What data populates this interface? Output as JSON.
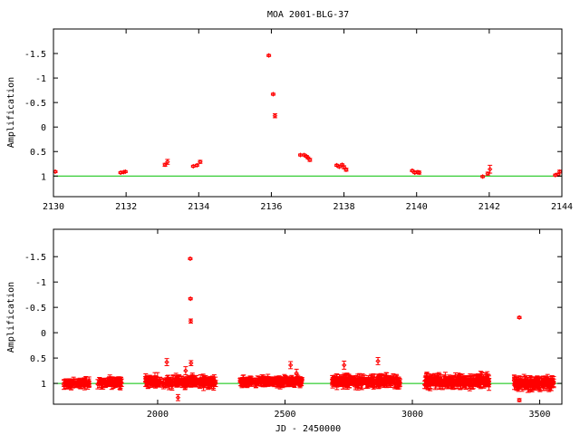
{
  "title": "MOA 2001-BLG-37",
  "colors": {
    "data": "#ff0000",
    "baseline": "#00c000",
    "frame": "#000000"
  },
  "chart_data": [
    {
      "type": "scatter",
      "title": "MOA 2001-BLG-37",
      "xlabel": "",
      "ylabel": "Amplification",
      "xlim": [
        2130,
        2144
      ],
      "ylim": [
        -2.0,
        1.42
      ],
      "y_reversed": true,
      "xticks": [
        2130,
        2132,
        2134,
        2136,
        2138,
        2140,
        2142,
        2144
      ],
      "yticks": [
        -1.5,
        -1,
        -0.5,
        0,
        0.5,
        1
      ],
      "ytick_labels": [
        "-1.5",
        "-1",
        "-0.5",
        "0",
        "0.5",
        "1"
      ],
      "baseline": 1,
      "grid": false,
      "points": [
        {
          "x": 2130.05,
          "y": 0.91,
          "err": 0.02
        },
        {
          "x": 2131.85,
          "y": 0.93,
          "err": 0.02
        },
        {
          "x": 2131.93,
          "y": 0.92,
          "err": 0.02
        },
        {
          "x": 2131.98,
          "y": 0.91,
          "err": 0.02
        },
        {
          "x": 2133.07,
          "y": 0.77,
          "err": 0.03
        },
        {
          "x": 2133.14,
          "y": 0.71,
          "err": 0.05
        },
        {
          "x": 2133.85,
          "y": 0.8,
          "err": 0.02
        },
        {
          "x": 2133.95,
          "y": 0.78,
          "err": 0.02
        },
        {
          "x": 2134.04,
          "y": 0.71,
          "err": 0.03
        },
        {
          "x": 2135.93,
          "y": -1.46,
          "err": 0.02
        },
        {
          "x": 2136.05,
          "y": -0.67,
          "err": 0.02
        },
        {
          "x": 2136.1,
          "y": -0.23,
          "err": 0.04
        },
        {
          "x": 2136.8,
          "y": 0.57,
          "err": 0.02
        },
        {
          "x": 2136.9,
          "y": 0.57,
          "err": 0.02
        },
        {
          "x": 2136.97,
          "y": 0.6,
          "err": 0.02
        },
        {
          "x": 2137.01,
          "y": 0.63,
          "err": 0.02
        },
        {
          "x": 2137.06,
          "y": 0.67,
          "err": 0.03
        },
        {
          "x": 2137.8,
          "y": 0.78,
          "err": 0.02
        },
        {
          "x": 2137.87,
          "y": 0.81,
          "err": 0.02
        },
        {
          "x": 2137.95,
          "y": 0.77,
          "err": 0.02
        },
        {
          "x": 2138.0,
          "y": 0.82,
          "err": 0.03
        },
        {
          "x": 2138.06,
          "y": 0.87,
          "err": 0.03
        },
        {
          "x": 2139.88,
          "y": 0.89,
          "err": 0.02
        },
        {
          "x": 2139.95,
          "y": 0.93,
          "err": 0.02
        },
        {
          "x": 2140.03,
          "y": 0.92,
          "err": 0.03
        },
        {
          "x": 2140.07,
          "y": 0.93,
          "err": 0.03
        },
        {
          "x": 2141.82,
          "y": 1.01,
          "err": 0.02
        },
        {
          "x": 2141.96,
          "y": 0.95,
          "err": 0.03
        },
        {
          "x": 2142.02,
          "y": 0.86,
          "err": 0.08
        },
        {
          "x": 2143.82,
          "y": 0.98,
          "err": 0.02
        },
        {
          "x": 2143.9,
          "y": 0.97,
          "err": 0.03
        },
        {
          "x": 2143.94,
          "y": 0.91,
          "err": 0.03
        }
      ]
    },
    {
      "type": "scatter",
      "title": "",
      "xlabel": "JD - 2450000",
      "ylabel": "Amplification",
      "xlim": [
        1591,
        3587
      ],
      "ylim": [
        -2.04,
        1.41
      ],
      "y_reversed": true,
      "xticks": [
        2000,
        2500,
        3000,
        3500
      ],
      "yticks": [
        -1.5,
        -1,
        -0.5,
        0,
        0.5,
        1
      ],
      "ytick_labels": [
        "-1.5",
        "-1",
        "-0.5",
        "0",
        "0.5",
        "1"
      ],
      "baseline": 1,
      "grid": false,
      "seasons": [
        {
          "start": 1631,
          "end": 1733,
          "mean": 1.0,
          "scatter": 0.05,
          "err": 0.06,
          "n": 70
        },
        {
          "start": 1764,
          "end": 1862,
          "mean": 0.98,
          "scatter": 0.06,
          "err": 0.07,
          "n": 60
        },
        {
          "start": 1952,
          "end": 2228,
          "mean": 0.97,
          "scatter": 0.07,
          "err": 0.07,
          "n": 200
        },
        {
          "start": 2323,
          "end": 2570,
          "mean": 0.96,
          "scatter": 0.06,
          "err": 0.06,
          "n": 180
        },
        {
          "start": 2685,
          "end": 2952,
          "mean": 0.96,
          "scatter": 0.07,
          "err": 0.07,
          "n": 200
        },
        {
          "start": 3048,
          "end": 3304,
          "mean": 0.96,
          "scatter": 0.08,
          "err": 0.08,
          "n": 200
        },
        {
          "start": 3399,
          "end": 3558,
          "mean": 1.0,
          "scatter": 0.08,
          "err": 0.08,
          "n": 130
        }
      ],
      "points": [
        {
          "x": 2128,
          "y": -1.46,
          "err": 0.02
        },
        {
          "x": 2129,
          "y": -0.67,
          "err": 0.02
        },
        {
          "x": 2130,
          "y": -0.23,
          "err": 0.04
        },
        {
          "x": 2036,
          "y": 0.58,
          "err": 0.07
        },
        {
          "x": 2110,
          "y": 0.75,
          "err": 0.08
        },
        {
          "x": 2131,
          "y": 0.6,
          "err": 0.05
        },
        {
          "x": 2522,
          "y": 0.64,
          "err": 0.07
        },
        {
          "x": 2545,
          "y": 0.8,
          "err": 0.08
        },
        {
          "x": 2732,
          "y": 0.64,
          "err": 0.08
        },
        {
          "x": 2865,
          "y": 0.56,
          "err": 0.07
        },
        {
          "x": 2080,
          "y": 1.28,
          "err": 0.06
        },
        {
          "x": 3420,
          "y": -0.3,
          "err": 0.02
        },
        {
          "x": 3420,
          "y": 1.33,
          "err": 0.03
        }
      ]
    }
  ]
}
